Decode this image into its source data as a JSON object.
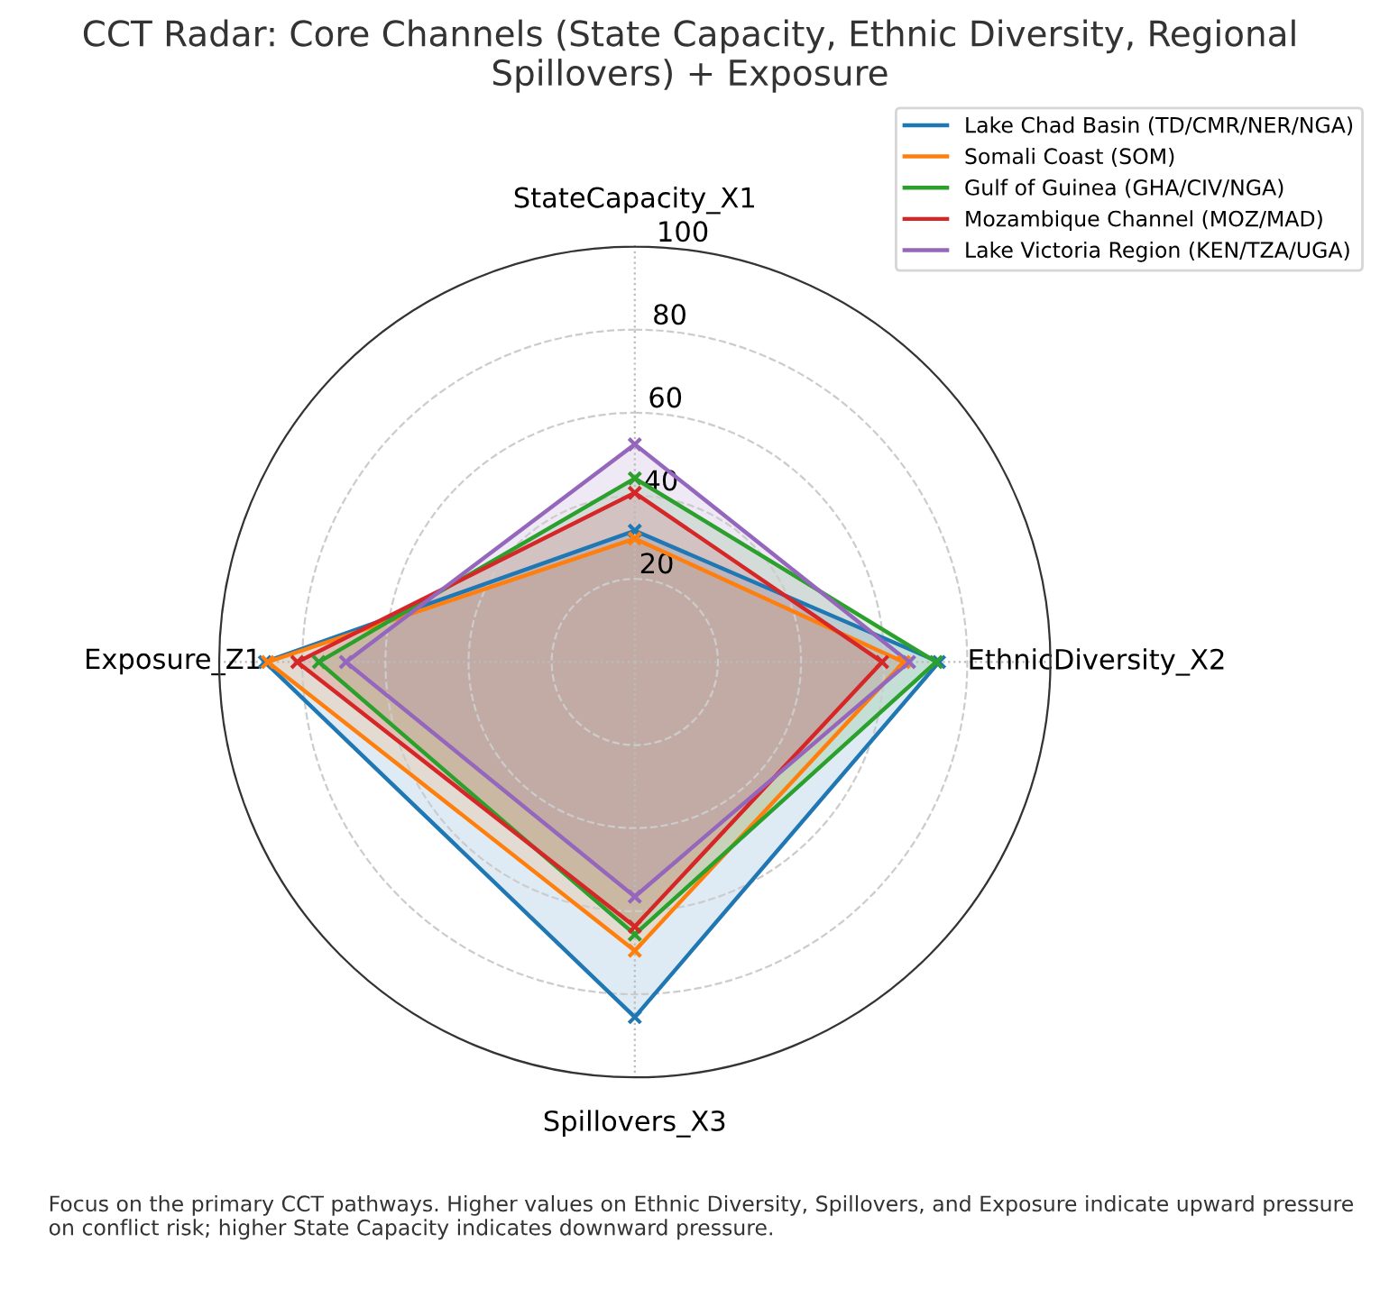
{
  "chart_data": {
    "type": "radar",
    "title": "CCT Radar: Core Channels (State Capacity, Ethnic Diversity, Regional Spillovers) + Exposure",
    "categories": [
      "StateCapacity_X1",
      "EthnicDiversity_X2",
      "Spillovers_X3",
      "Exposure_Z1"
    ],
    "series": [
      {
        "name": "Lake Chad Basin (TD/CMR/NER/NGA)",
        "color": "#1f77b4",
        "values": [
          31.6,
          73.2,
          85.5,
          89
        ]
      },
      {
        "name": "Somali Coast (SOM)",
        "color": "#ff7f0e",
        "values": [
          29.7,
          64.7,
          69.5,
          88.3
        ]
      },
      {
        "name": "Gulf of Guinea (GHA/CIV/NGA)",
        "color": "#2ca02c",
        "values": [
          44.2,
          72.5,
          65.6,
          76
        ]
      },
      {
        "name": "Mozambique Channel (MOZ/MAD)",
        "color": "#d62728",
        "values": [
          40.7,
          59.5,
          63.7,
          81.2
        ]
      },
      {
        "name": "Lake Victoria Region (KEN/TZA/UGA)",
        "color": "#9467bd",
        "values": [
          52.4,
          66,
          56.5,
          69.5
        ]
      }
    ],
    "ylim": [
      0,
      100
    ],
    "yticks": [
      20,
      40,
      60,
      80,
      100
    ],
    "grid": true,
    "legend": "top right",
    "marker": "cross",
    "line_style": "solid",
    "annotations": [
      "Focus on the primary CCT pathways. Higher values on Ethnic Diversity, Spillovers, and Exposure indicate upward pressure on conflict risk; higher State Capacity indicates downward pressure."
    ]
  }
}
